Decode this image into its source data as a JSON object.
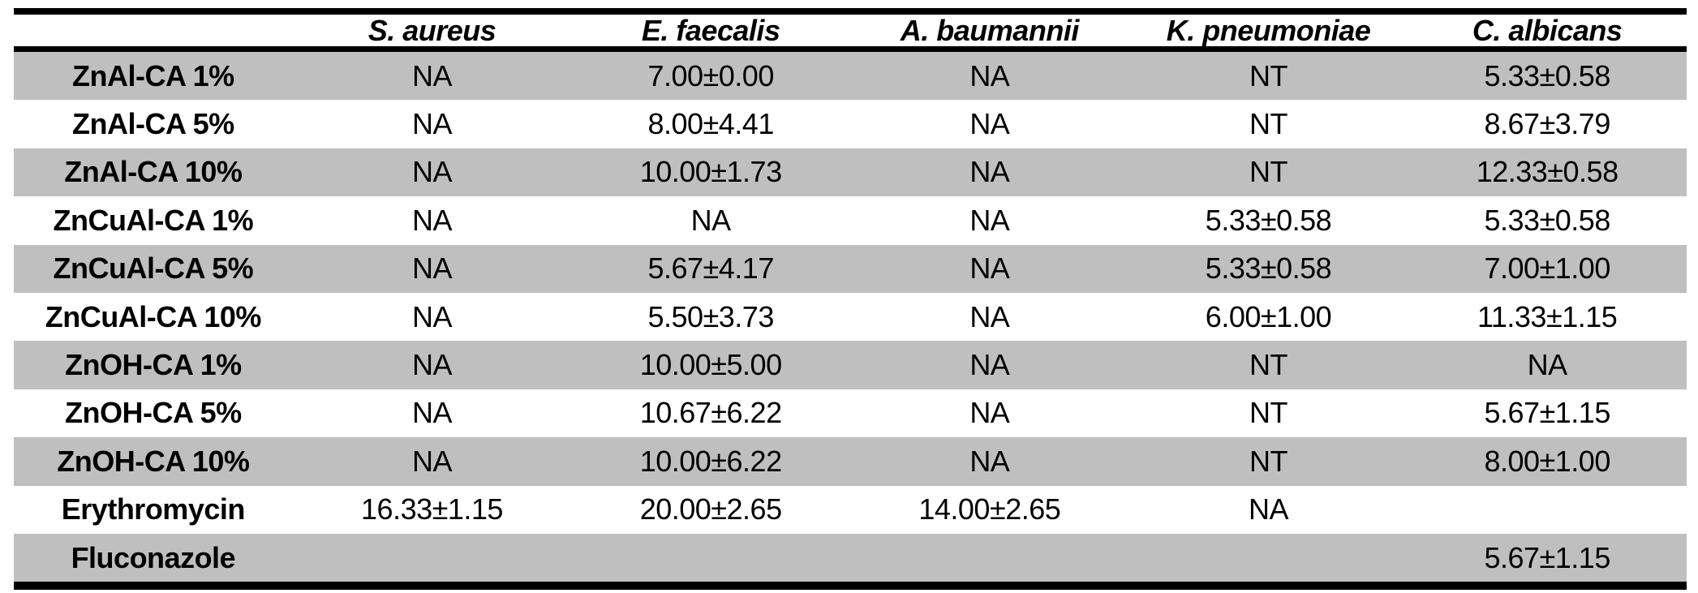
{
  "page": {
    "background": "#ffffff"
  },
  "chart_data": {
    "type": "table",
    "columns": [
      "",
      "S. aureus",
      "E. faecalis",
      "A. baumannii",
      "K. pneumoniae",
      "C. albicans"
    ],
    "rows": [
      {
        "label": "ZnAl-CA 1%",
        "values": [
          "NA",
          "7.00±0.00",
          "NA",
          "NT",
          "5.33±0.58"
        ]
      },
      {
        "label": "ZnAl-CA 5%",
        "values": [
          "NA",
          "8.00±4.41",
          "NA",
          "NT",
          "8.67±3.79"
        ]
      },
      {
        "label": "ZnAl-CA 10%",
        "values": [
          "NA",
          "10.00±1.73",
          "NA",
          "NT",
          "12.33±0.58"
        ]
      },
      {
        "label": "ZnCuAl-CA 1%",
        "values": [
          "NA",
          "NA",
          "NA",
          "5.33±0.58",
          "5.33±0.58"
        ]
      },
      {
        "label": "ZnCuAl-CA 5%",
        "values": [
          "NA",
          "5.67±4.17",
          "NA",
          "5.33±0.58",
          "7.00±1.00"
        ]
      },
      {
        "label": "ZnCuAl-CA 10%",
        "values": [
          "NA",
          "5.50±3.73",
          "NA",
          "6.00±1.00",
          "11.33±1.15"
        ]
      },
      {
        "label": "ZnOH-CA 1%",
        "values": [
          "NA",
          "10.00±5.00",
          "NA",
          "NT",
          "NA"
        ]
      },
      {
        "label": "ZnOH-CA 5%",
        "values": [
          "NA",
          "10.67±6.22",
          "NA",
          "NT",
          "5.67±1.15"
        ]
      },
      {
        "label": "ZnOH-CA 10%",
        "values": [
          "NA",
          "10.00±6.22",
          "NA",
          "NT",
          "8.00±1.00"
        ]
      },
      {
        "label": "Erythromycin",
        "values": [
          "16.33±1.15",
          "20.00±2.65",
          "14.00±2.65",
          "NA",
          ""
        ]
      },
      {
        "label": "Fluconazole",
        "values": [
          "",
          "",
          "",
          "",
          "5.67±1.15"
        ]
      }
    ],
    "layout": {
      "stripe_color": "#bfbfbf",
      "border_color": "#000000",
      "background_color": "#ffffff",
      "striped_row_parity": "odd"
    }
  }
}
